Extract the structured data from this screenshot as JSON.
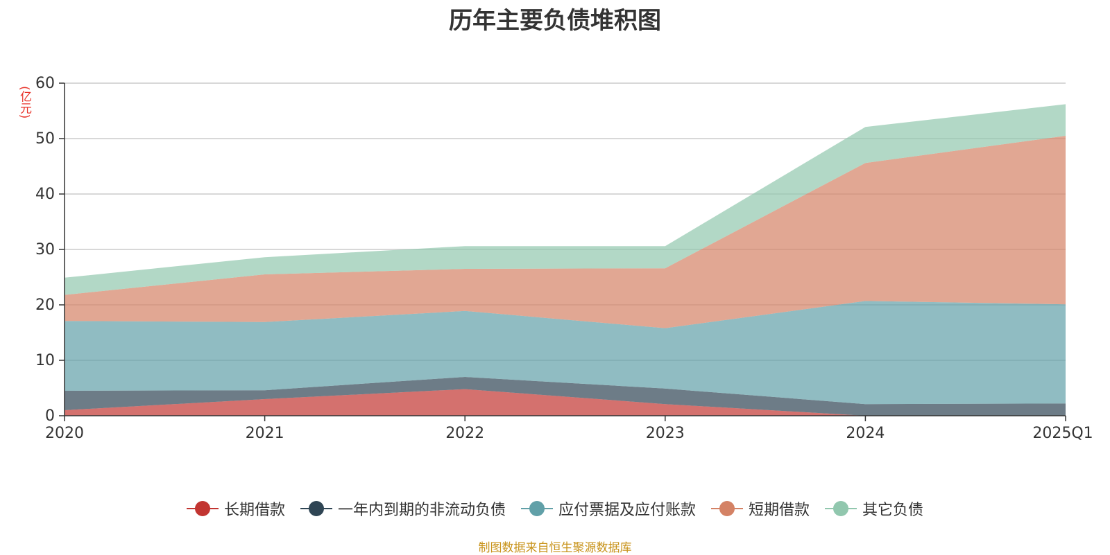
{
  "chart_data": {
    "type": "area",
    "stacked": true,
    "title": "历年主要负债堆积图",
    "ylabel": "(亿元)",
    "xlabel": "",
    "categories": [
      "2020",
      "2021",
      "2022",
      "2023",
      "2024",
      "2025Q1"
    ],
    "ylim": [
      0,
      60
    ],
    "yticks": [
      0,
      10,
      20,
      30,
      40,
      50,
      60
    ],
    "grid": true,
    "legend_position": "bottom",
    "series": [
      {
        "name": "长期借款",
        "color": "#c23531",
        "values": [
          1.0,
          3.0,
          4.8,
          2.1,
          0.0,
          0.0
        ]
      },
      {
        "name": "一年内到期的非流动负债",
        "color": "#2f4554",
        "values": [
          3.5,
          1.6,
          2.2,
          2.8,
          2.1,
          2.2
        ]
      },
      {
        "name": "应付票据及应付账款",
        "color": "#61a0a8",
        "values": [
          12.6,
          12.3,
          11.9,
          10.9,
          18.6,
          17.9
        ]
      },
      {
        "name": "短期借款",
        "color": "#d48265",
        "values": [
          4.7,
          8.6,
          7.6,
          10.8,
          24.9,
          30.4
        ]
      },
      {
        "name": "其它负债",
        "color": "#91c7ae",
        "values": [
          3.1,
          3.1,
          4.1,
          4.0,
          6.5,
          5.7
        ]
      }
    ]
  },
  "source_note": "制图数据来自恒生聚源数据库"
}
